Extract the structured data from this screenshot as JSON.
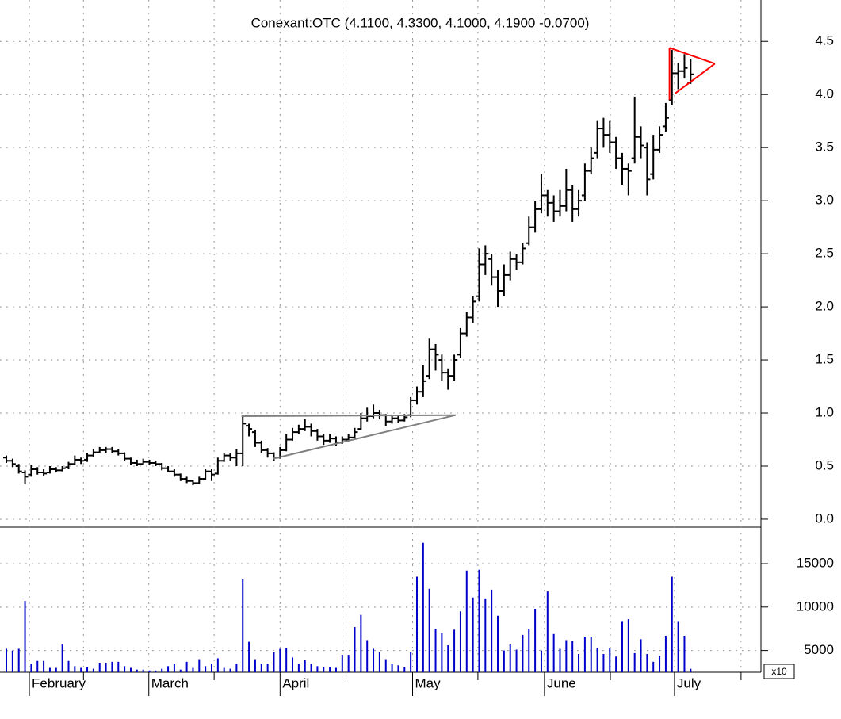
{
  "chart_data": {
    "type": "ohlc",
    "subtitle": "Conexant:OTC (4.1100, 4.3300, 4.1000, 4.1900 -0.0700)",
    "xlim": [
      -1.02,
      121.3
    ],
    "xticks": [
      {
        "value": 3.7,
        "label": "February"
      },
      {
        "value": 22.9,
        "label": "March"
      },
      {
        "value": 44,
        "label": "April"
      },
      {
        "value": 65.3,
        "label": "May"
      },
      {
        "value": 86.5,
        "label": "June"
      },
      {
        "value": 107.4,
        "label": "July"
      }
    ],
    "xminorticks": [
      12.4,
      33.4,
      54.6,
      75.8,
      97.1,
      118.1
    ],
    "ylim": [
      -0.075,
      4.89
    ],
    "yticks": [
      {
        "value": 0,
        "label": "0.0"
      },
      0.5,
      {
        "value": 1,
        "label": "1.0"
      },
      1.5,
      {
        "value": 2,
        "label": "2.0"
      },
      2.5,
      {
        "value": 3,
        "label": "3.0"
      },
      3.5,
      {
        "value": 4,
        "label": "4.0"
      },
      4.5
    ],
    "color": "#000000",
    "grid": true,
    "ohlc": [
      [
        0.58,
        0.6,
        0.53,
        0.55
      ],
      [
        0.55,
        0.57,
        0.49,
        0.52
      ],
      [
        0.5,
        0.52,
        0.43,
        0.45
      ],
      [
        0.44,
        0.46,
        0.33,
        0.4
      ],
      [
        0.42,
        0.51,
        0.4,
        0.47
      ],
      [
        0.47,
        0.49,
        0.42,
        0.44
      ],
      [
        0.44,
        0.47,
        0.41,
        0.43
      ],
      [
        0.44,
        0.5,
        0.43,
        0.47
      ],
      [
        0.47,
        0.49,
        0.44,
        0.46
      ],
      [
        0.46,
        0.5,
        0.45,
        0.48
      ],
      [
        0.49,
        0.54,
        0.47,
        0.52
      ],
      [
        0.52,
        0.6,
        0.51,
        0.56
      ],
      [
        0.56,
        0.58,
        0.52,
        0.55
      ],
      [
        0.56,
        0.62,
        0.54,
        0.6
      ],
      [
        0.6,
        0.66,
        0.59,
        0.63
      ],
      [
        0.63,
        0.68,
        0.62,
        0.65
      ],
      [
        0.65,
        0.68,
        0.62,
        0.66
      ],
      [
        0.66,
        0.68,
        0.62,
        0.64
      ],
      [
        0.64,
        0.66,
        0.6,
        0.62
      ],
      [
        0.62,
        0.63,
        0.55,
        0.57
      ],
      [
        0.57,
        0.58,
        0.51,
        0.53
      ],
      [
        0.53,
        0.56,
        0.5,
        0.52
      ],
      [
        0.52,
        0.57,
        0.51,
        0.54
      ],
      [
        0.54,
        0.56,
        0.51,
        0.53
      ],
      [
        0.53,
        0.55,
        0.5,
        0.52
      ],
      [
        0.52,
        0.53,
        0.46,
        0.48
      ],
      [
        0.48,
        0.5,
        0.44,
        0.45
      ],
      [
        0.45,
        0.47,
        0.4,
        0.42
      ],
      [
        0.42,
        0.43,
        0.36,
        0.38
      ],
      [
        0.38,
        0.4,
        0.34,
        0.36
      ],
      [
        0.36,
        0.37,
        0.32,
        0.34
      ],
      [
        0.34,
        0.4,
        0.33,
        0.38
      ],
      [
        0.38,
        0.47,
        0.37,
        0.45
      ],
      [
        0.45,
        0.47,
        0.36,
        0.42
      ],
      [
        0.43,
        0.58,
        0.42,
        0.55
      ],
      [
        0.55,
        0.62,
        0.54,
        0.6
      ],
      [
        0.6,
        0.62,
        0.55,
        0.58
      ],
      [
        0.58,
        0.66,
        0.5,
        0.62
      ],
      [
        0.62,
        0.97,
        0.5,
        0.9
      ],
      [
        0.88,
        0.9,
        0.78,
        0.85
      ],
      [
        0.82,
        0.84,
        0.68,
        0.72
      ],
      [
        0.72,
        0.74,
        0.62,
        0.65
      ],
      [
        0.65,
        0.67,
        0.58,
        0.62
      ],
      [
        0.62,
        0.63,
        0.55,
        0.58
      ],
      [
        0.58,
        0.68,
        0.57,
        0.65
      ],
      [
        0.65,
        0.8,
        0.64,
        0.75
      ],
      [
        0.75,
        0.86,
        0.74,
        0.82
      ],
      [
        0.82,
        0.89,
        0.8,
        0.85
      ],
      [
        0.85,
        0.94,
        0.83,
        0.87
      ],
      [
        0.87,
        0.9,
        0.78,
        0.83
      ],
      [
        0.83,
        0.85,
        0.74,
        0.78
      ],
      [
        0.78,
        0.8,
        0.7,
        0.74
      ],
      [
        0.74,
        0.8,
        0.72,
        0.76
      ],
      [
        0.76,
        0.78,
        0.69,
        0.72
      ],
      [
        0.72,
        0.78,
        0.71,
        0.75
      ],
      [
        0.75,
        0.8,
        0.74,
        0.77
      ],
      [
        0.77,
        0.86,
        0.76,
        0.82
      ],
      [
        0.85,
        1.0,
        0.84,
        0.95
      ],
      [
        0.95,
        1.05,
        0.92,
        0.97
      ],
      [
        0.97,
        1.08,
        0.95,
        1.0
      ],
      [
        1.0,
        1.03,
        0.94,
        0.98
      ],
      [
        0.98,
        0.99,
        0.88,
        0.92
      ],
      [
        0.92,
        0.98,
        0.9,
        0.95
      ],
      [
        0.95,
        0.98,
        0.91,
        0.93
      ],
      [
        0.93,
        0.99,
        0.92,
        0.96
      ],
      [
        0.98,
        1.15,
        0.96,
        1.12
      ],
      [
        1.12,
        1.25,
        1.08,
        1.2
      ],
      [
        1.2,
        1.45,
        1.15,
        1.3
      ],
      [
        1.35,
        1.7,
        1.32,
        1.6
      ],
      [
        1.6,
        1.65,
        1.4,
        1.55
      ],
      [
        1.5,
        1.55,
        1.3,
        1.38
      ],
      [
        1.38,
        1.42,
        1.22,
        1.35
      ],
      [
        1.35,
        1.55,
        1.3,
        1.5
      ],
      [
        1.55,
        1.8,
        1.52,
        1.75
      ],
      [
        1.75,
        1.95,
        1.72,
        1.9
      ],
      [
        1.9,
        2.1,
        1.85,
        2.05
      ],
      [
        2.1,
        2.55,
        2.05,
        2.4
      ],
      [
        2.4,
        2.58,
        2.3,
        2.5
      ],
      [
        2.45,
        2.5,
        2.2,
        2.28
      ],
      [
        2.28,
        2.35,
        2.0,
        2.15
      ],
      [
        2.15,
        2.4,
        2.1,
        2.3
      ],
      [
        2.3,
        2.52,
        2.25,
        2.45
      ],
      [
        2.45,
        2.5,
        2.35,
        2.42
      ],
      [
        2.42,
        2.6,
        2.4,
        2.55
      ],
      [
        2.6,
        2.85,
        2.58,
        2.75
      ],
      [
        2.75,
        3.0,
        2.7,
        2.92
      ],
      [
        2.92,
        3.25,
        2.88,
        3.05
      ],
      [
        3.05,
        3.1,
        2.85,
        2.98
      ],
      [
        2.98,
        3.05,
        2.8,
        2.9
      ],
      [
        2.9,
        3.1,
        2.85,
        2.95
      ],
      [
        2.95,
        3.3,
        2.9,
        3.1
      ],
      [
        3.1,
        3.15,
        2.8,
        2.92
      ],
      [
        2.92,
        3.1,
        2.85,
        3.0
      ],
      [
        3.05,
        3.35,
        3.0,
        3.28
      ],
      [
        3.28,
        3.5,
        3.25,
        3.4
      ],
      [
        3.45,
        3.75,
        3.4,
        3.68
      ],
      [
        3.68,
        3.78,
        3.5,
        3.62
      ],
      [
        3.62,
        3.75,
        3.45,
        3.55
      ],
      [
        3.55,
        3.6,
        3.3,
        3.4
      ],
      [
        3.4,
        3.45,
        3.15,
        3.3
      ],
      [
        3.3,
        3.35,
        3.05,
        3.28
      ],
      [
        3.4,
        3.98,
        3.35,
        3.6
      ],
      [
        3.6,
        3.7,
        3.4,
        3.52
      ],
      [
        3.5,
        3.55,
        3.05,
        3.2
      ],
      [
        3.25,
        3.62,
        3.2,
        3.48
      ],
      [
        3.48,
        3.7,
        3.45,
        3.62
      ],
      [
        3.7,
        3.92,
        3.65,
        3.78
      ],
      [
        3.95,
        4.42,
        3.9,
        4.2
      ],
      [
        4.2,
        4.3,
        4.05,
        4.22
      ],
      [
        4.22,
        4.38,
        4.15,
        4.25
      ],
      [
        4.11,
        4.33,
        4.1,
        4.19
      ]
    ],
    "volume": {
      "color": "#0000cc",
      "ylim": [
        2500,
        19200
      ],
      "yticks": [
        5000,
        10000,
        15000
      ],
      "multiplier": "x10",
      "values": [
        5200,
        5000,
        5200,
        10700,
        3500,
        3800,
        3800,
        3000,
        3000,
        5700,
        3800,
        3200,
        3000,
        3100,
        2900,
        3600,
        3600,
        3700,
        3700,
        3200,
        3000,
        2800,
        2800,
        2700,
        2700,
        2900,
        3200,
        3500,
        2800,
        3700,
        3000,
        4000,
        3200,
        3500,
        4100,
        3000,
        2900,
        3500,
        13200,
        6000,
        4000,
        3500,
        3500,
        4800,
        5200,
        5300,
        4200,
        3500,
        3900,
        3500,
        3200,
        3100,
        3100,
        3000,
        4500,
        4500,
        7700,
        9100,
        6200,
        5200,
        4800,
        4000,
        3500,
        3300,
        3100,
        4800,
        13500,
        17400,
        12100,
        7500,
        7000,
        5600,
        7400,
        9500,
        14200,
        11100,
        14300,
        11000,
        12000,
        9000,
        5000,
        5700,
        5100,
        6800,
        7500,
        9800,
        5000,
        11800,
        6900,
        5200,
        6200,
        6100,
        4600,
        6600,
        6600,
        5300,
        4600,
        5300,
        4300,
        8300,
        8600,
        4700,
        6300,
        4600,
        3700,
        4400,
        6700,
        13500,
        8300,
        6700,
        2900
      ]
    },
    "annotations": [
      {
        "color": "#808080",
        "points": [
          [
            37.8,
            0.97
          ],
          [
            72.2,
            0.98
          ]
        ]
      },
      {
        "color": "#808080",
        "points": [
          [
            42.9,
            0.57
          ],
          [
            72.2,
            0.98
          ]
        ]
      },
      {
        "color": "#ff0000",
        "points": [
          [
            106.6,
            4.44
          ],
          [
            113.9,
            4.29
          ]
        ]
      },
      {
        "color": "#ff0000",
        "points": [
          [
            107.5,
            4.01
          ],
          [
            113.9,
            4.29
          ]
        ]
      },
      {
        "color": "#ff0000",
        "points": [
          [
            106.6,
            4.44
          ],
          [
            106.6,
            3.95
          ]
        ]
      }
    ]
  }
}
